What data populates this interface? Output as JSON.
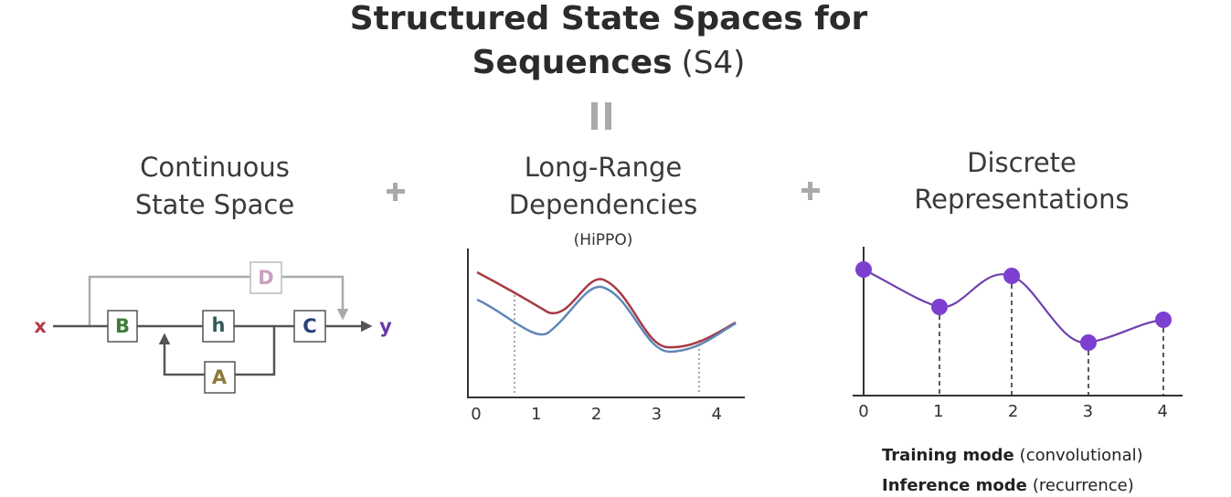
{
  "title": {
    "line1": "Structured State Spaces for",
    "line2_bold": "Sequences",
    "line2_suffix": "(S4)"
  },
  "panels": [
    {
      "title_lines": [
        "Continuous",
        "State Space"
      ],
      "diagram": {
        "input": "x",
        "output": "y",
        "blocks": {
          "B": "B",
          "h": "h",
          "C": "C",
          "D": "D",
          "A": "A"
        }
      }
    },
    {
      "title_lines": [
        "Long-Range",
        "Dependencies"
      ],
      "subtitle": "(HiPPO)",
      "x_ticks": [
        0,
        1,
        2,
        3,
        4
      ]
    },
    {
      "title_lines": [
        "Discrete",
        "Representations"
      ],
      "x_ticks": [
        0,
        1,
        2,
        3,
        4
      ]
    }
  ],
  "modes": [
    {
      "name": "Training mode",
      "detail": "(convolutional)"
    },
    {
      "name": "Inference mode",
      "detail": "(recurrence)"
    }
  ]
}
